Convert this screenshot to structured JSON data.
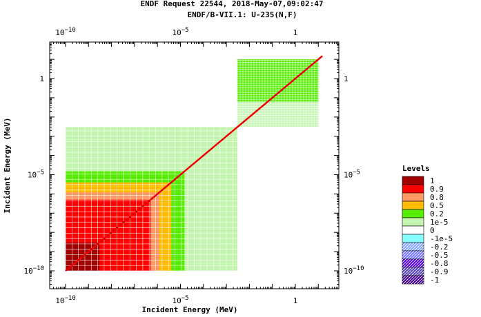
{
  "chart_data": {
    "type": "heatmap",
    "title": "ENDF Request 22544, 2018-May-07,09:02:47",
    "subtitle": "ENDF/B-VII.1: U-235(N,F)",
    "xlabel": "Incident Energy (MeV)",
    "ylabel": "Incident Energy (MeV)",
    "x_scale": "log",
    "y_scale": "log",
    "xlim": [
      2e-11,
      20
    ],
    "ylim": [
      2e-11,
      20
    ],
    "x_ticks": [
      {
        "value": 1e-10,
        "base": "10",
        "exp": "−10"
      },
      {
        "value": 1e-05,
        "base": "10",
        "exp": "−5"
      },
      {
        "value": 1,
        "base": "1",
        "exp": ""
      }
    ],
    "y_ticks": [
      {
        "value": 1e-10,
        "base": "10",
        "exp": "−10"
      },
      {
        "value": 1e-05,
        "base": "10",
        "exp": "−5"
      },
      {
        "value": 1,
        "base": "1",
        "exp": ""
      }
    ],
    "legend": {
      "title": "Levels",
      "placement": "right",
      "entries": [
        {
          "label": "1",
          "color": "#a00000",
          "hatch": false
        },
        {
          "label": "0.9",
          "color": "#ff0000",
          "hatch": false
        },
        {
          "label": "0.8",
          "color": "#ff9966",
          "hatch": false
        },
        {
          "label": "0.5",
          "color": "#ffbb00",
          "hatch": false
        },
        {
          "label": "0.2",
          "color": "#55ee00",
          "hatch": false
        },
        {
          "label": "1e-5",
          "color": "#c3f5b0",
          "hatch": false
        },
        {
          "label": "0",
          "color": "#ffffff",
          "hatch": false
        },
        {
          "label": "-1e-5",
          "color": "#88ffff",
          "hatch": false
        },
        {
          "label": "-0.2",
          "color": "#88aaff",
          "hatch": true
        },
        {
          "label": "-0.5",
          "color": "#7777ff",
          "hatch": true
        },
        {
          "label": "-0.8",
          "color": "#5500dd",
          "hatch": true
        },
        {
          "label": "-0.9",
          "color": "#5544bb",
          "hatch": true
        },
        {
          "label": "-1",
          "color": "#440099",
          "hatch": true
        }
      ]
    },
    "regions": [
      {
        "level": "1e-5",
        "x": [
          1e-10,
          0.003
        ],
        "y": [
          1e-10,
          0.003
        ]
      },
      {
        "level": "0.2",
        "x": [
          1e-10,
          1.5e-05
        ],
        "y": [
          1e-10,
          1.5e-05
        ]
      },
      {
        "level": "0.5",
        "x": [
          1e-10,
          4e-06
        ],
        "y": [
          1e-10,
          4e-06
        ]
      },
      {
        "level": "0.8",
        "x": [
          1e-10,
          1.2e-06
        ],
        "y": [
          1e-10,
          1.2e-06
        ]
      },
      {
        "level": "0.9",
        "x": [
          1e-10,
          5e-07
        ],
        "y": [
          1e-10,
          5e-07
        ]
      },
      {
        "level": "1",
        "x": [
          1e-10,
          3e-09
        ],
        "y": [
          1e-10,
          3e-09
        ]
      },
      {
        "level": "1e-5",
        "x": [
          0.003,
          10
        ],
        "y": [
          0.003,
          10
        ]
      },
      {
        "level": "0.2",
        "x": [
          0.003,
          10
        ],
        "y": [
          0.06,
          10
        ]
      }
    ],
    "diagonal": {
      "level": "1",
      "from": 1e-10,
      "to": 15
    }
  }
}
